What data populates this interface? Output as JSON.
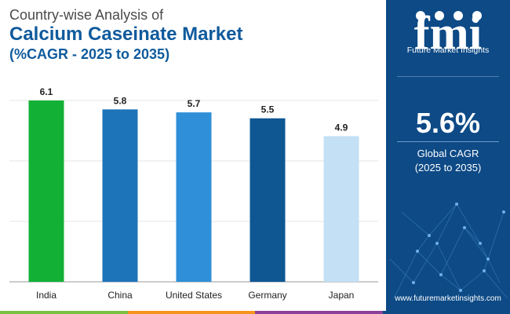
{
  "header": {
    "line1": "Country-wise Analysis of",
    "line2": "Calcium Caseinate Market",
    "line3": "(%CAGR - 2025 to 2035)"
  },
  "chart_data": {
    "type": "bar",
    "categories": [
      "India",
      "China",
      "United States",
      "Germany",
      "Japan"
    ],
    "values": [
      6.1,
      5.8,
      5.7,
      5.5,
      4.9
    ],
    "value_labels": [
      "6.1",
      "5.8",
      "5.7",
      "5.5",
      "4.9"
    ],
    "colors": [
      "#12b135",
      "#1e74b9",
      "#2f8fd8",
      "#0e5793",
      "#c3e0f4"
    ],
    "ylim": [
      0,
      6.1
    ],
    "grid": true,
    "title": "Country-wise Analysis of Calcium Caseinate Market (%CAGR - 2025 to 2035)"
  },
  "sidebar": {
    "logo_letters": "fmi",
    "logo_text": "Future Market Insights",
    "cagr_value": "5.6%",
    "cagr_label_1": "Global CAGR",
    "cagr_label_2": "(2025 to 2035)",
    "website": "www.futuremarketinsights.com"
  },
  "footer": {
    "colors": [
      "#7ac143",
      "#f7941d",
      "#8e3f97",
      "#0d4a86"
    ]
  }
}
